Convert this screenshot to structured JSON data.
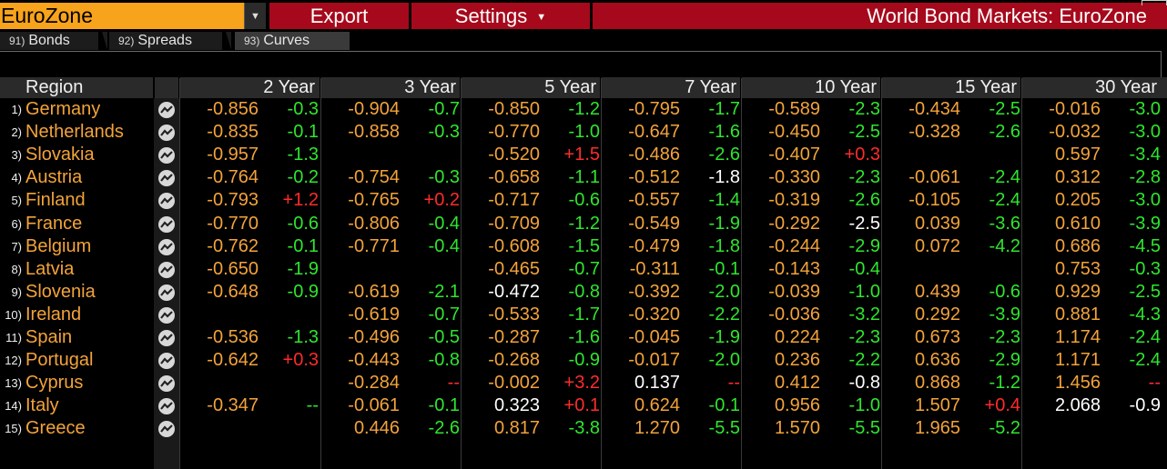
{
  "header": {
    "security_field": "EuroZone",
    "export_label": "Export",
    "settings_label": "Settings",
    "title": "World Bond Markets: EuroZone"
  },
  "tabs": [
    {
      "num": "91)",
      "label": "Bonds"
    },
    {
      "num": "92)",
      "label": "Spreads"
    },
    {
      "num": "93)",
      "label": "Curves"
    }
  ],
  "columns": [
    "Region",
    "2 Year",
    "3 Year",
    "5 Year",
    "7 Year",
    "10 Year",
    "15 Year",
    "30 Year"
  ],
  "colors": {
    "orange": "#f3a33a",
    "green": "#2ee62e",
    "red": "#ff2b2b",
    "white": "#ffffff",
    "accent_red": "#a6091c"
  },
  "rows": [
    {
      "num": "1)",
      "region": "Germany",
      "cells": [
        {
          "y": "-0.856",
          "yc": "orange",
          "c": "-0.3",
          "cc": "green"
        },
        {
          "y": "-0.904",
          "yc": "orange",
          "c": "-0.7",
          "cc": "green"
        },
        {
          "y": "-0.850",
          "yc": "orange",
          "c": "-1.2",
          "cc": "green"
        },
        {
          "y": "-0.795",
          "yc": "orange",
          "c": "-1.7",
          "cc": "green"
        },
        {
          "y": "-0.589",
          "yc": "orange",
          "c": "-2.3",
          "cc": "green"
        },
        {
          "y": "-0.434",
          "yc": "orange",
          "c": "-2.5",
          "cc": "green"
        },
        {
          "y": "-0.016",
          "yc": "orange",
          "c": "-3.0",
          "cc": "green"
        }
      ]
    },
    {
      "num": "2)",
      "region": "Netherlands",
      "cells": [
        {
          "y": "-0.835",
          "yc": "orange",
          "c": "-0.1",
          "cc": "green"
        },
        {
          "y": "-0.858",
          "yc": "orange",
          "c": "-0.3",
          "cc": "green"
        },
        {
          "y": "-0.770",
          "yc": "orange",
          "c": "-1.0",
          "cc": "green"
        },
        {
          "y": "-0.647",
          "yc": "orange",
          "c": "-1.6",
          "cc": "green"
        },
        {
          "y": "-0.450",
          "yc": "orange",
          "c": "-2.5",
          "cc": "green"
        },
        {
          "y": "-0.328",
          "yc": "orange",
          "c": "-2.6",
          "cc": "green"
        },
        {
          "y": "-0.032",
          "yc": "orange",
          "c": "-3.0",
          "cc": "green"
        }
      ]
    },
    {
      "num": "3)",
      "region": "Slovakia",
      "cells": [
        {
          "y": "-0.957",
          "yc": "orange",
          "c": "-1.3",
          "cc": "green"
        },
        {
          "y": "",
          "yc": "orange",
          "c": "",
          "cc": "green"
        },
        {
          "y": "-0.520",
          "yc": "orange",
          "c": "+1.5",
          "cc": "red"
        },
        {
          "y": "-0.486",
          "yc": "orange",
          "c": "-2.6",
          "cc": "green"
        },
        {
          "y": "-0.407",
          "yc": "orange",
          "c": "+0.3",
          "cc": "red"
        },
        {
          "y": "",
          "yc": "orange",
          "c": "",
          "cc": "green"
        },
        {
          "y": "0.597",
          "yc": "orange",
          "c": "-3.4",
          "cc": "green"
        }
      ]
    },
    {
      "num": "4)",
      "region": "Austria",
      "cells": [
        {
          "y": "-0.764",
          "yc": "orange",
          "c": "-0.2",
          "cc": "green"
        },
        {
          "y": "-0.754",
          "yc": "orange",
          "c": "-0.3",
          "cc": "green"
        },
        {
          "y": "-0.658",
          "yc": "orange",
          "c": "-1.1",
          "cc": "green"
        },
        {
          "y": "-0.512",
          "yc": "orange",
          "c": "-1.8",
          "cc": "white"
        },
        {
          "y": "-0.330",
          "yc": "orange",
          "c": "-2.3",
          "cc": "green"
        },
        {
          "y": "-0.061",
          "yc": "orange",
          "c": "-2.4",
          "cc": "green"
        },
        {
          "y": "0.312",
          "yc": "orange",
          "c": "-2.8",
          "cc": "green"
        }
      ]
    },
    {
      "num": "5)",
      "region": "Finland",
      "cells": [
        {
          "y": "-0.793",
          "yc": "orange",
          "c": "+1.2",
          "cc": "red"
        },
        {
          "y": "-0.765",
          "yc": "orange",
          "c": "+0.2",
          "cc": "red"
        },
        {
          "y": "-0.717",
          "yc": "orange",
          "c": "-0.6",
          "cc": "green"
        },
        {
          "y": "-0.557",
          "yc": "orange",
          "c": "-1.4",
          "cc": "green"
        },
        {
          "y": "-0.319",
          "yc": "orange",
          "c": "-2.6",
          "cc": "green"
        },
        {
          "y": "-0.105",
          "yc": "orange",
          "c": "-2.4",
          "cc": "green"
        },
        {
          "y": "0.205",
          "yc": "orange",
          "c": "-3.0",
          "cc": "green"
        }
      ]
    },
    {
      "num": "6)",
      "region": "France",
      "cells": [
        {
          "y": "-0.770",
          "yc": "orange",
          "c": "-0.6",
          "cc": "green"
        },
        {
          "y": "-0.806",
          "yc": "orange",
          "c": "-0.4",
          "cc": "green"
        },
        {
          "y": "-0.709",
          "yc": "orange",
          "c": "-1.2",
          "cc": "green"
        },
        {
          "y": "-0.549",
          "yc": "orange",
          "c": "-1.9",
          "cc": "green"
        },
        {
          "y": "-0.292",
          "yc": "orange",
          "c": "-2.5",
          "cc": "white"
        },
        {
          "y": "0.039",
          "yc": "orange",
          "c": "-3.6",
          "cc": "green"
        },
        {
          "y": "0.610",
          "yc": "orange",
          "c": "-3.9",
          "cc": "green"
        }
      ]
    },
    {
      "num": "7)",
      "region": "Belgium",
      "cells": [
        {
          "y": "-0.762",
          "yc": "orange",
          "c": "-0.1",
          "cc": "green"
        },
        {
          "y": "-0.771",
          "yc": "orange",
          "c": "-0.4",
          "cc": "green"
        },
        {
          "y": "-0.608",
          "yc": "orange",
          "c": "-1.5",
          "cc": "green"
        },
        {
          "y": "-0.479",
          "yc": "orange",
          "c": "-1.8",
          "cc": "green"
        },
        {
          "y": "-0.244",
          "yc": "orange",
          "c": "-2.9",
          "cc": "green"
        },
        {
          "y": "0.072",
          "yc": "orange",
          "c": "-4.2",
          "cc": "green"
        },
        {
          "y": "0.686",
          "yc": "orange",
          "c": "-4.5",
          "cc": "green"
        }
      ]
    },
    {
      "num": "8)",
      "region": "Latvia",
      "cells": [
        {
          "y": "-0.650",
          "yc": "orange",
          "c": "-1.9",
          "cc": "green"
        },
        {
          "y": "",
          "yc": "orange",
          "c": "",
          "cc": "green"
        },
        {
          "y": "-0.465",
          "yc": "orange",
          "c": "-0.7",
          "cc": "green"
        },
        {
          "y": "-0.311",
          "yc": "orange",
          "c": "-0.1",
          "cc": "green"
        },
        {
          "y": "-0.143",
          "yc": "orange",
          "c": "-0.4",
          "cc": "green"
        },
        {
          "y": "",
          "yc": "orange",
          "c": "",
          "cc": "green"
        },
        {
          "y": "0.753",
          "yc": "orange",
          "c": "-0.3",
          "cc": "green"
        }
      ]
    },
    {
      "num": "9)",
      "region": "Slovenia",
      "cells": [
        {
          "y": "-0.648",
          "yc": "orange",
          "c": "-0.9",
          "cc": "green"
        },
        {
          "y": "-0.619",
          "yc": "orange",
          "c": "-2.1",
          "cc": "green"
        },
        {
          "y": "-0.472",
          "yc": "white",
          "c": "-0.8",
          "cc": "green"
        },
        {
          "y": "-0.392",
          "yc": "orange",
          "c": "-2.0",
          "cc": "green"
        },
        {
          "y": "-0.039",
          "yc": "orange",
          "c": "-1.0",
          "cc": "green"
        },
        {
          "y": "0.439",
          "yc": "orange",
          "c": "-0.6",
          "cc": "green"
        },
        {
          "y": "0.929",
          "yc": "orange",
          "c": "-2.5",
          "cc": "green"
        }
      ]
    },
    {
      "num": "10)",
      "region": "Ireland",
      "cells": [
        {
          "y": "",
          "yc": "orange",
          "c": "",
          "cc": "green"
        },
        {
          "y": "-0.619",
          "yc": "orange",
          "c": "-0.7",
          "cc": "green"
        },
        {
          "y": "-0.533",
          "yc": "orange",
          "c": "-1.7",
          "cc": "green"
        },
        {
          "y": "-0.320",
          "yc": "orange",
          "c": "-2.2",
          "cc": "green"
        },
        {
          "y": "-0.036",
          "yc": "orange",
          "c": "-3.2",
          "cc": "green"
        },
        {
          "y": "0.292",
          "yc": "orange",
          "c": "-3.9",
          "cc": "green"
        },
        {
          "y": "0.881",
          "yc": "orange",
          "c": "-4.3",
          "cc": "green"
        }
      ]
    },
    {
      "num": "11)",
      "region": "Spain",
      "cells": [
        {
          "y": "-0.536",
          "yc": "orange",
          "c": "-1.3",
          "cc": "green"
        },
        {
          "y": "-0.496",
          "yc": "orange",
          "c": "-0.5",
          "cc": "green"
        },
        {
          "y": "-0.287",
          "yc": "orange",
          "c": "-1.6",
          "cc": "green"
        },
        {
          "y": "-0.045",
          "yc": "orange",
          "c": "-1.9",
          "cc": "green"
        },
        {
          "y": "0.224",
          "yc": "orange",
          "c": "-2.3",
          "cc": "green"
        },
        {
          "y": "0.673",
          "yc": "orange",
          "c": "-2.3",
          "cc": "green"
        },
        {
          "y": "1.174",
          "yc": "orange",
          "c": "-2.4",
          "cc": "green"
        }
      ]
    },
    {
      "num": "12)",
      "region": "Portugal",
      "cells": [
        {
          "y": "-0.642",
          "yc": "orange",
          "c": "+0.3",
          "cc": "red"
        },
        {
          "y": "-0.443",
          "yc": "orange",
          "c": "-0.8",
          "cc": "green"
        },
        {
          "y": "-0.268",
          "yc": "orange",
          "c": "-0.9",
          "cc": "green"
        },
        {
          "y": "-0.017",
          "yc": "orange",
          "c": "-2.0",
          "cc": "green"
        },
        {
          "y": "0.236",
          "yc": "orange",
          "c": "-2.2",
          "cc": "green"
        },
        {
          "y": "0.636",
          "yc": "orange",
          "c": "-2.9",
          "cc": "green"
        },
        {
          "y": "1.171",
          "yc": "orange",
          "c": "-2.4",
          "cc": "green"
        }
      ]
    },
    {
      "num": "13)",
      "region": "Cyprus",
      "cells": [
        {
          "y": "",
          "yc": "orange",
          "c": "",
          "cc": "green"
        },
        {
          "y": "-0.284",
          "yc": "orange",
          "c": "--",
          "cc": "red"
        },
        {
          "y": "-0.002",
          "yc": "orange",
          "c": "+3.2",
          "cc": "red"
        },
        {
          "y": "0.137",
          "yc": "white",
          "c": "--",
          "cc": "red"
        },
        {
          "y": "0.412",
          "yc": "orange",
          "c": "-0.8",
          "cc": "white"
        },
        {
          "y": "0.868",
          "yc": "orange",
          "c": "-1.2",
          "cc": "green"
        },
        {
          "y": "1.456",
          "yc": "orange",
          "c": "--",
          "cc": "red"
        }
      ]
    },
    {
      "num": "14)",
      "region": "Italy",
      "cells": [
        {
          "y": "-0.347",
          "yc": "orange",
          "c": "--",
          "cc": "green"
        },
        {
          "y": "-0.061",
          "yc": "orange",
          "c": "-0.1",
          "cc": "green"
        },
        {
          "y": "0.323",
          "yc": "white",
          "c": "+0.1",
          "cc": "red"
        },
        {
          "y": "0.624",
          "yc": "orange",
          "c": "-0.1",
          "cc": "green"
        },
        {
          "y": "0.956",
          "yc": "orange",
          "c": "-1.0",
          "cc": "green"
        },
        {
          "y": "1.507",
          "yc": "orange",
          "c": "+0.4",
          "cc": "red"
        },
        {
          "y": "2.068",
          "yc": "white",
          "c": "-0.9",
          "cc": "white"
        }
      ]
    },
    {
      "num": "15)",
      "region": "Greece",
      "cells": [
        {
          "y": "",
          "yc": "orange",
          "c": "",
          "cc": "green"
        },
        {
          "y": "0.446",
          "yc": "orange",
          "c": "-2.6",
          "cc": "green"
        },
        {
          "y": "0.817",
          "yc": "orange",
          "c": "-3.8",
          "cc": "green"
        },
        {
          "y": "1.270",
          "yc": "orange",
          "c": "-5.5",
          "cc": "green"
        },
        {
          "y": "1.570",
          "yc": "orange",
          "c": "-5.5",
          "cc": "green"
        },
        {
          "y": "1.965",
          "yc": "orange",
          "c": "-5.2",
          "cc": "green"
        },
        {
          "y": "",
          "yc": "orange",
          "c": "",
          "cc": "green"
        }
      ]
    }
  ]
}
